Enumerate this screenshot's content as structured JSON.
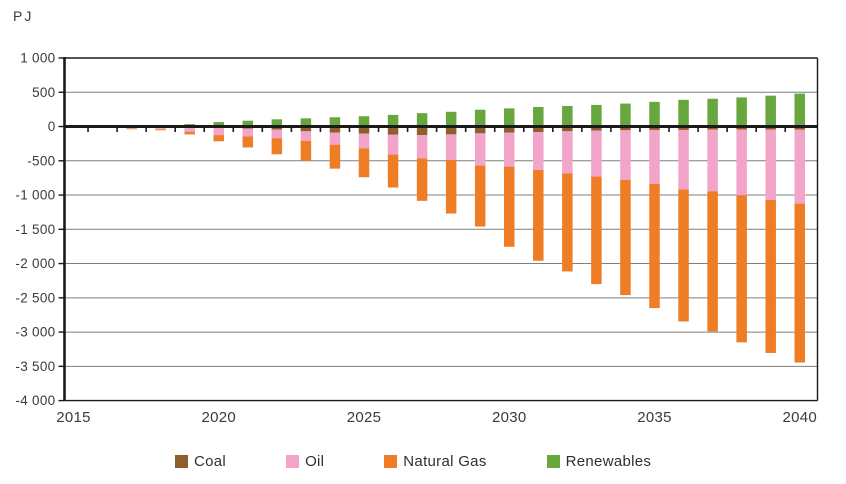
{
  "chart": {
    "unit_label": "PJ",
    "background": "#ffffff",
    "gridline_color": "#7f7f7f",
    "axis_color": "#1a1a1a",
    "text_color": "#3b3b3b"
  },
  "chart_data": {
    "type": "bar",
    "stacked": true,
    "title": "",
    "xlabel": "",
    "ylabel": "PJ",
    "grid": "horizontal",
    "legend_position": "bottom",
    "ylim": [
      -4000,
      1000
    ],
    "y_ticks": [
      1000,
      500,
      0,
      -500,
      -1000,
      -1500,
      -2000,
      -2500,
      -3000,
      -3500,
      -4000
    ],
    "y_tick_labels": [
      "1 000",
      "500",
      "0",
      "-500",
      "-1 000",
      "-1 500",
      "-2 000",
      "-2 500",
      "-3 000",
      "-3 500",
      "-4 000"
    ],
    "x": [
      2016,
      2017,
      2018,
      2019,
      2020,
      2021,
      2022,
      2023,
      2024,
      2025,
      2026,
      2027,
      2028,
      2029,
      2030,
      2031,
      2032,
      2033,
      2034,
      2035,
      2036,
      2037,
      2038,
      2039,
      2040
    ],
    "x_axis_tick_years": [
      2015,
      2020,
      2025,
      2030,
      2035,
      2040
    ],
    "x_axis_tick_labels": [
      "2015",
      "2020",
      "2025",
      "2030",
      "2035",
      "2040"
    ],
    "series": [
      {
        "name": "Coal",
        "color": "#8c5f2d",
        "values": [
          0,
          -5,
          -10,
          -15,
          -20,
          -30,
          -45,
          -70,
          -90,
          -105,
          -120,
          -125,
          -115,
          -100,
          -90,
          -80,
          -70,
          -60,
          -55,
          -50,
          -50,
          -45,
          -45,
          -45,
          -45
        ]
      },
      {
        "name": "Oil",
        "color": "#f3a5c9",
        "values": [
          -10,
          -25,
          -30,
          -60,
          -105,
          -115,
          -125,
          -140,
          -175,
          -215,
          -290,
          -340,
          -375,
          -470,
          -495,
          -555,
          -615,
          -670,
          -725,
          -785,
          -870,
          -900,
          -960,
          -1025,
          -1080
        ]
      },
      {
        "name": "Natural Gas",
        "color": "#ee7d26",
        "values": [
          -5,
          -10,
          -15,
          -40,
          -90,
          -160,
          -235,
          -290,
          -350,
          -420,
          -480,
          -620,
          -780,
          -890,
          -1170,
          -1325,
          -1430,
          -1570,
          -1680,
          -1815,
          -1925,
          -2045,
          -2145,
          -2235,
          -2320
        ]
      },
      {
        "name": "Renewables",
        "color": "#68a63e",
        "values": [
          5,
          10,
          20,
          35,
          65,
          85,
          105,
          120,
          135,
          150,
          170,
          195,
          215,
          245,
          265,
          285,
          300,
          315,
          335,
          360,
          390,
          405,
          425,
          450,
          480
        ]
      }
    ]
  },
  "legend": {
    "items": [
      {
        "label": "Coal",
        "color": "#8c5f2d"
      },
      {
        "label": "Oil",
        "color": "#f3a5c9"
      },
      {
        "label": "Natural Gas",
        "color": "#ee7d26"
      },
      {
        "label": "Renewables",
        "color": "#68a63e"
      }
    ]
  }
}
